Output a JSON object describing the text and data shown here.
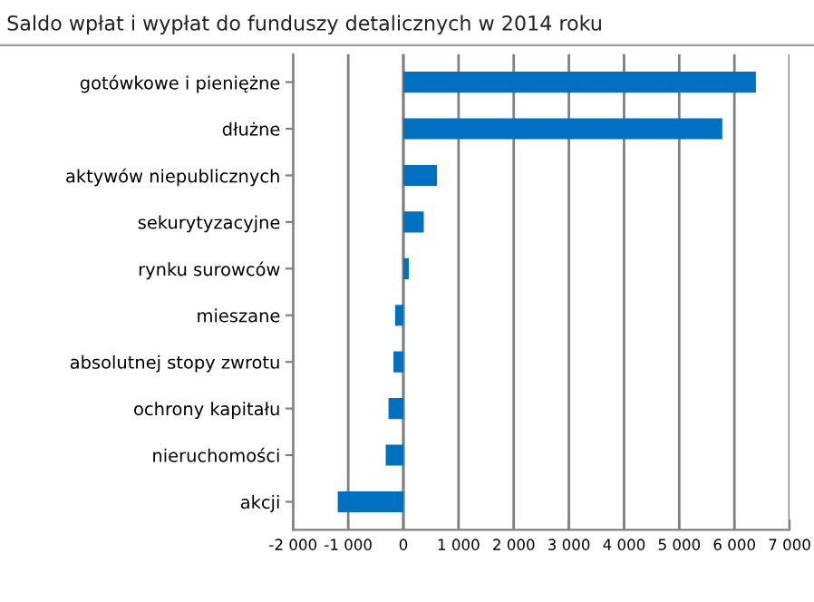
{
  "chart_data": {
    "type": "bar",
    "orientation": "horizontal",
    "title": "Saldo wpłat i wypłat do funduszy detalicznych w 2014 roku",
    "categories": [
      "gotówkowe i pieniężne",
      "dłużne",
      "aktywów niepublicznych",
      "sekurytyzacyjne",
      "rynku surowców",
      "mieszane",
      "absolutnej stopy zwrotu",
      "ochrony kapitału",
      "nieruchomości",
      "akcji"
    ],
    "values": [
      6390,
      5780,
      610,
      370,
      100,
      -150,
      -180,
      -270,
      -320,
      -1190
    ],
    "color": "#0070c0",
    "xlim": [
      -2000,
      7000
    ],
    "xticks": [
      {
        "value": -2000,
        "label": "-2 000"
      },
      {
        "value": -1000,
        "label": "-1 000"
      },
      0,
      {
        "value": 1000,
        "label": "1 000"
      },
      {
        "value": 2000,
        "label": "2 000"
      },
      {
        "value": 3000,
        "label": "3 000"
      },
      {
        "value": 4000,
        "label": "4 000"
      },
      {
        "value": 5000,
        "label": "5 000"
      },
      {
        "value": 6000,
        "label": "6 000"
      },
      {
        "value": 7000,
        "label": "7 000"
      }
    ],
    "grid": "x"
  }
}
